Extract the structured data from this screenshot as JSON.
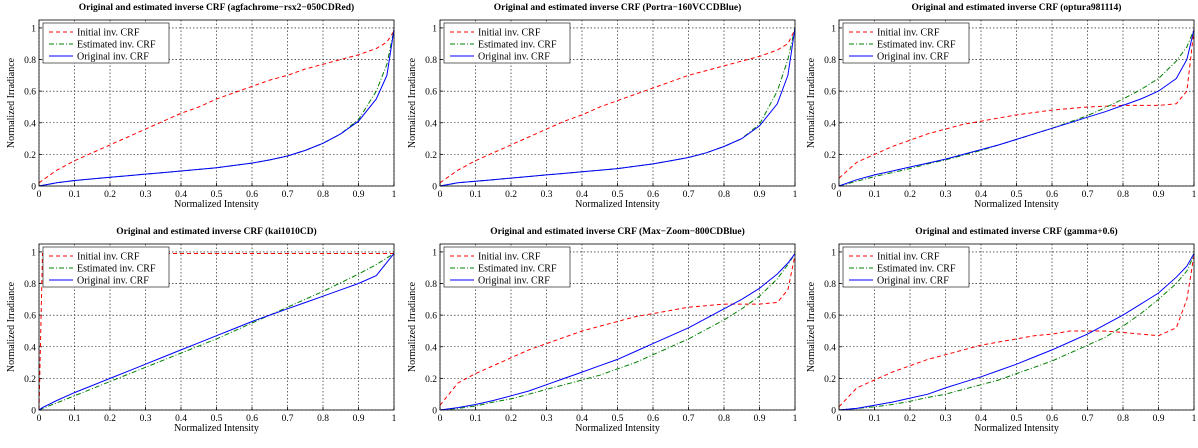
{
  "figure": {
    "xlabel": "Normalized Intensity",
    "ylabel": "Normalized Irradiance",
    "xticks": [
      "0",
      "0.1",
      "0.2",
      "0.3",
      "0.4",
      "0.5",
      "0.6",
      "0.7",
      "0.8",
      "0.9",
      "1"
    ],
    "yticks": [
      "0",
      "0.2",
      "0.4",
      "0.6",
      "0.8",
      "1"
    ],
    "legend": [
      "Initial inv. CRF",
      "Estimated inv. CRF",
      "Original inv. CRF"
    ],
    "colors": {
      "initial": "#ff0000",
      "estimated": "#008000",
      "original": "#0000ff"
    }
  },
  "chart_data": [
    {
      "type": "line",
      "title": "Original and estimated inverse CRF (agfachrome−rsx2−050CDRed)",
      "xlabel": "Normalized Intensity",
      "ylabel": "Normalized Irradiance",
      "xlim": [
        0,
        1
      ],
      "ylim": [
        0,
        1.05
      ],
      "grid": true,
      "legend_position": "top-left",
      "x": [
        0,
        0.05,
        0.1,
        0.15,
        0.2,
        0.25,
        0.3,
        0.35,
        0.4,
        0.45,
        0.5,
        0.55,
        0.6,
        0.65,
        0.7,
        0.75,
        0.8,
        0.85,
        0.9,
        0.95,
        0.98,
        1
      ],
      "series": [
        {
          "name": "Initial inv. CRF",
          "style": "dashed",
          "values": [
            0.02,
            0.1,
            0.16,
            0.21,
            0.26,
            0.31,
            0.36,
            0.41,
            0.46,
            0.5,
            0.55,
            0.59,
            0.63,
            0.67,
            0.7,
            0.74,
            0.77,
            0.8,
            0.83,
            0.87,
            0.91,
            0.98
          ]
        },
        {
          "name": "Estimated inv. CRF",
          "style": "dash-dot",
          "values": [
            0,
            0.02,
            0.035,
            0.045,
            0.055,
            0.065,
            0.075,
            0.085,
            0.095,
            0.105,
            0.115,
            0.13,
            0.145,
            0.165,
            0.19,
            0.225,
            0.27,
            0.33,
            0.42,
            0.6,
            0.77,
            0.99
          ]
        },
        {
          "name": "Original inv. CRF",
          "style": "solid",
          "values": [
            0,
            0.02,
            0.035,
            0.045,
            0.055,
            0.065,
            0.075,
            0.085,
            0.095,
            0.105,
            0.115,
            0.13,
            0.145,
            0.165,
            0.19,
            0.225,
            0.27,
            0.33,
            0.41,
            0.55,
            0.7,
            0.99
          ]
        }
      ]
    },
    {
      "type": "line",
      "title": "Original and estimated inverse CRF (Portra−160VCCDBlue)",
      "xlabel": "Normalized Intensity",
      "ylabel": "Normalized Irradiance",
      "xlim": [
        0,
        1
      ],
      "ylim": [
        0,
        1.05
      ],
      "grid": true,
      "legend_position": "top-left",
      "x": [
        0,
        0.05,
        0.1,
        0.15,
        0.2,
        0.25,
        0.3,
        0.35,
        0.4,
        0.45,
        0.5,
        0.55,
        0.6,
        0.65,
        0.7,
        0.75,
        0.8,
        0.85,
        0.9,
        0.95,
        0.98,
        1
      ],
      "series": [
        {
          "name": "Initial inv. CRF",
          "style": "dashed",
          "values": [
            0.02,
            0.1,
            0.16,
            0.21,
            0.26,
            0.31,
            0.36,
            0.41,
            0.45,
            0.5,
            0.54,
            0.58,
            0.62,
            0.66,
            0.7,
            0.73,
            0.76,
            0.79,
            0.82,
            0.86,
            0.9,
            0.99
          ]
        },
        {
          "name": "Estimated inv. CRF",
          "style": "dash-dot",
          "values": [
            0,
            0.02,
            0.03,
            0.04,
            0.05,
            0.06,
            0.07,
            0.08,
            0.09,
            0.1,
            0.11,
            0.125,
            0.14,
            0.16,
            0.18,
            0.21,
            0.25,
            0.3,
            0.39,
            0.6,
            0.8,
            1.0
          ]
        },
        {
          "name": "Original inv. CRF",
          "style": "solid",
          "values": [
            0,
            0.02,
            0.03,
            0.04,
            0.05,
            0.06,
            0.07,
            0.08,
            0.09,
            0.1,
            0.11,
            0.125,
            0.14,
            0.16,
            0.18,
            0.21,
            0.25,
            0.3,
            0.38,
            0.52,
            0.7,
            1.0
          ]
        }
      ]
    },
    {
      "type": "line",
      "title": "Original and estimated inverse CRF (optura981114)",
      "xlabel": "Normalized Intensity",
      "ylabel": "Normalized Irradiance",
      "xlim": [
        0,
        1
      ],
      "ylim": [
        0,
        1.05
      ],
      "grid": true,
      "legend_position": "top-left",
      "x": [
        0,
        0.05,
        0.1,
        0.15,
        0.2,
        0.25,
        0.3,
        0.35,
        0.4,
        0.45,
        0.5,
        0.55,
        0.6,
        0.65,
        0.7,
        0.75,
        0.8,
        0.85,
        0.9,
        0.95,
        0.98,
        1
      ],
      "series": [
        {
          "name": "Initial inv. CRF",
          "style": "dashed",
          "values": [
            0.05,
            0.15,
            0.2,
            0.25,
            0.29,
            0.33,
            0.36,
            0.39,
            0.41,
            0.43,
            0.45,
            0.465,
            0.48,
            0.49,
            0.5,
            0.505,
            0.51,
            0.51,
            0.51,
            0.52,
            0.6,
            0.99
          ]
        },
        {
          "name": "Estimated inv. CRF",
          "style": "dash-dot",
          "values": [
            0,
            0.03,
            0.06,
            0.085,
            0.11,
            0.14,
            0.165,
            0.195,
            0.225,
            0.26,
            0.295,
            0.33,
            0.365,
            0.405,
            0.445,
            0.495,
            0.55,
            0.61,
            0.68,
            0.79,
            0.88,
            0.99
          ]
        },
        {
          "name": "Original inv. CRF",
          "style": "solid",
          "values": [
            0,
            0.04,
            0.07,
            0.095,
            0.12,
            0.145,
            0.17,
            0.2,
            0.23,
            0.26,
            0.295,
            0.33,
            0.365,
            0.4,
            0.435,
            0.47,
            0.51,
            0.55,
            0.6,
            0.68,
            0.8,
            0.99
          ]
        }
      ]
    },
    {
      "type": "line",
      "title": "Original and estimated inverse CRF (kai1010CD)",
      "xlabel": "Normalized Intensity",
      "ylabel": "Normalized Irradiance",
      "xlim": [
        0,
        1
      ],
      "ylim": [
        0,
        1.05
      ],
      "grid": true,
      "legend_position": "top-left",
      "x": [
        0,
        0.01,
        0.05,
        0.1,
        0.15,
        0.2,
        0.25,
        0.3,
        0.35,
        0.4,
        0.45,
        0.5,
        0.55,
        0.6,
        0.65,
        0.7,
        0.75,
        0.8,
        0.85,
        0.9,
        0.95,
        1
      ],
      "series": [
        {
          "name": "Initial inv. CRF",
          "style": "dashed",
          "values": [
            0,
            0.99,
            0.99,
            0.99,
            0.99,
            0.99,
            0.99,
            0.99,
            0.99,
            0.99,
            0.99,
            0.99,
            0.99,
            0.99,
            0.99,
            0.99,
            0.99,
            0.99,
            0.99,
            0.99,
            0.99,
            0.99
          ]
        },
        {
          "name": "Estimated inv. CRF",
          "style": "dash-dot",
          "values": [
            0,
            0.01,
            0.045,
            0.09,
            0.135,
            0.18,
            0.225,
            0.27,
            0.315,
            0.36,
            0.405,
            0.45,
            0.5,
            0.55,
            0.6,
            0.65,
            0.7,
            0.75,
            0.805,
            0.86,
            0.92,
            0.99
          ]
        },
        {
          "name": "Original inv. CRF",
          "style": "solid",
          "values": [
            0,
            0.015,
            0.06,
            0.11,
            0.155,
            0.2,
            0.245,
            0.29,
            0.335,
            0.38,
            0.425,
            0.47,
            0.515,
            0.56,
            0.6,
            0.64,
            0.68,
            0.72,
            0.76,
            0.8,
            0.85,
            0.99
          ]
        }
      ]
    },
    {
      "type": "line",
      "title": "Original and estimated inverse CRF (Max−Zoom−800CDBlue)",
      "xlabel": "Normalized Intensity",
      "ylabel": "Normalized Irradiance",
      "xlim": [
        0,
        1
      ],
      "ylim": [
        0,
        1.05
      ],
      "grid": true,
      "legend_position": "top-left",
      "x": [
        0,
        0.05,
        0.1,
        0.15,
        0.2,
        0.25,
        0.3,
        0.35,
        0.4,
        0.45,
        0.5,
        0.55,
        0.6,
        0.65,
        0.7,
        0.75,
        0.8,
        0.85,
        0.9,
        0.95,
        0.98,
        1
      ],
      "series": [
        {
          "name": "Initial inv. CRF",
          "style": "dashed",
          "values": [
            0.03,
            0.17,
            0.23,
            0.28,
            0.33,
            0.38,
            0.42,
            0.46,
            0.5,
            0.53,
            0.56,
            0.59,
            0.61,
            0.63,
            0.65,
            0.66,
            0.67,
            0.67,
            0.67,
            0.68,
            0.76,
            0.98
          ]
        },
        {
          "name": "Estimated inv. CRF",
          "style": "dash-dot",
          "values": [
            0,
            0.01,
            0.025,
            0.05,
            0.07,
            0.1,
            0.13,
            0.16,
            0.19,
            0.22,
            0.26,
            0.3,
            0.35,
            0.4,
            0.45,
            0.51,
            0.57,
            0.64,
            0.72,
            0.83,
            0.92,
            0.99
          ]
        },
        {
          "name": "Original inv. CRF",
          "style": "solid",
          "values": [
            0,
            0.015,
            0.035,
            0.06,
            0.09,
            0.12,
            0.16,
            0.2,
            0.24,
            0.28,
            0.32,
            0.37,
            0.42,
            0.47,
            0.52,
            0.58,
            0.64,
            0.7,
            0.77,
            0.86,
            0.93,
            0.99
          ]
        }
      ]
    },
    {
      "type": "line",
      "title": "Original and estimated inverse CRF (gamma+0.6)",
      "xlabel": "Normalized Intensity",
      "ylabel": "Normalized Irradiance",
      "xlim": [
        0,
        1
      ],
      "ylim": [
        0,
        1.05
      ],
      "grid": true,
      "legend_position": "top-left",
      "x": [
        0,
        0.05,
        0.1,
        0.15,
        0.2,
        0.25,
        0.3,
        0.35,
        0.4,
        0.45,
        0.5,
        0.55,
        0.6,
        0.65,
        0.7,
        0.75,
        0.8,
        0.85,
        0.9,
        0.95,
        0.98,
        1
      ],
      "series": [
        {
          "name": "Initial inv. CRF",
          "style": "dashed",
          "values": [
            0.02,
            0.14,
            0.19,
            0.24,
            0.28,
            0.32,
            0.35,
            0.38,
            0.41,
            0.43,
            0.45,
            0.47,
            0.48,
            0.5,
            0.5,
            0.5,
            0.49,
            0.48,
            0.47,
            0.52,
            0.7,
            0.98
          ]
        },
        {
          "name": "Estimated inv. CRF",
          "style": "dash-dot",
          "values": [
            0,
            0.01,
            0.02,
            0.035,
            0.055,
            0.08,
            0.1,
            0.13,
            0.16,
            0.19,
            0.23,
            0.27,
            0.31,
            0.36,
            0.41,
            0.46,
            0.53,
            0.61,
            0.7,
            0.8,
            0.88,
            0.98
          ]
        },
        {
          "name": "Original inv. CRF",
          "style": "solid",
          "values": [
            0,
            0.01,
            0.03,
            0.05,
            0.075,
            0.1,
            0.14,
            0.175,
            0.21,
            0.25,
            0.29,
            0.335,
            0.38,
            0.43,
            0.48,
            0.54,
            0.6,
            0.67,
            0.74,
            0.84,
            0.91,
            0.99
          ]
        }
      ]
    }
  ]
}
